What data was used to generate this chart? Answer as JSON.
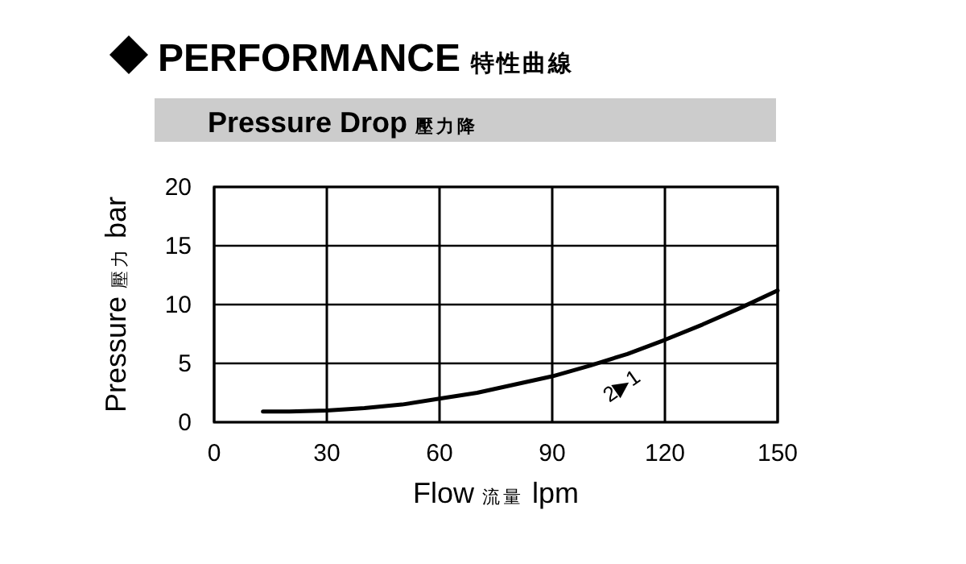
{
  "chart_data": {
    "type": "line",
    "title": "PERFORMANCE 特性曲線",
    "subtitle": "Pressure Drop 壓力降",
    "xlabel": "Flow 流量 lpm",
    "ylabel": "Pressure 壓力 bar",
    "xlim": [
      0,
      150
    ],
    "xticks": [
      0,
      30,
      60,
      90,
      120,
      150
    ],
    "ylim": [
      0,
      20
    ],
    "yticks": [
      0,
      5,
      10,
      15,
      20
    ],
    "grid": true,
    "series": [
      {
        "color": "#000000",
        "x": [
          13,
          20,
          30,
          40,
          50,
          60,
          70,
          80,
          90,
          100,
          110,
          120,
          130,
          140,
          150
        ],
        "values": [
          0.9,
          0.9,
          1.0,
          1.2,
          1.5,
          2.0,
          2.5,
          3.2,
          3.9,
          4.8,
          5.8,
          7.0,
          8.3,
          9.7,
          11.2
        ]
      }
    ],
    "annotations": [
      "2▶1"
    ]
  }
}
